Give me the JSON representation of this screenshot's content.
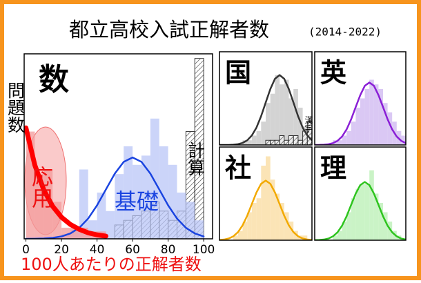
{
  "header": {
    "title": "都立高校入試正解者数",
    "subtitle": "(2014-2022)"
  },
  "chart_data": [
    {
      "type": "histogram",
      "title": "数",
      "y_label": "問題数",
      "x_label": "100人あたりの正解者数",
      "bins": [
        0,
        5,
        10,
        15,
        20,
        25,
        30,
        35,
        40,
        45,
        50,
        55,
        60,
        65,
        70,
        75,
        80,
        85,
        90,
        95,
        100
      ],
      "xlim": [
        -1,
        105
      ],
      "ylim": [
        0,
        20
      ],
      "xticks": [
        0,
        20,
        40,
        60,
        80,
        100
      ],
      "series": [
        {
          "name": "計算",
          "color": "#333333",
          "hatch": true,
          "values": [
            0,
            0,
            0,
            0,
            0,
            0,
            0,
            0,
            0,
            0,
            1.5,
            2,
            2.5,
            3,
            4,
            3,
            2,
            3,
            11.6,
            19.5
          ]
        },
        {
          "name": "基礎",
          "color": "#b9c6f7",
          "values": [
            0,
            0,
            0,
            0,
            0.5,
            1,
            7.5,
            2,
            5,
            3,
            7,
            10,
            8,
            9,
            13,
            10,
            8,
            5,
            4,
            2
          ]
        },
        {
          "name": "応用",
          "color": "#f39a9a",
          "values": [
            11.6,
            7,
            7.5,
            4,
            1.2,
            1.2,
            1.2,
            0.8,
            0.8,
            0,
            0,
            0,
            0,
            0,
            0,
            0,
            0,
            0,
            0,
            0
          ]
        }
      ],
      "curves": [
        {
          "color": "#1a44e0",
          "x": [
            0,
            5,
            10,
            15,
            20,
            25,
            30,
            35,
            40,
            45,
            50,
            55,
            60,
            65,
            70,
            75,
            80,
            85,
            90,
            95,
            100
          ],
          "values": [
            0,
            0.01,
            0.04,
            0.1,
            0.26,
            0.58,
            1.19,
            2.19,
            3.62,
            5.34,
            7.05,
            8.32,
            8.8,
            8.32,
            7.05,
            5.34,
            3.62,
            2.19,
            1.19,
            0.58,
            0.26
          ]
        },
        {
          "color": "#ff0000",
          "x": [
            0,
            5,
            10,
            15,
            20,
            25,
            30,
            35,
            40,
            45
          ],
          "values": [
            12,
            7.97,
            5.3,
            3.52,
            2.34,
            1.55,
            1.03,
            0.65,
            0.43,
            0.29
          ]
        }
      ]
    },
    {
      "type": "histogram",
      "title": "国",
      "bins": [
        0,
        5,
        10,
        15,
        20,
        25,
        30,
        35,
        40,
        45,
        50,
        55,
        60,
        65,
        70,
        75,
        80,
        85,
        90,
        95,
        100
      ],
      "xlim": [
        0,
        100
      ],
      "ylim": [
        0,
        20
      ],
      "series": [
        {
          "name": null,
          "color": "#c4c4c4",
          "values": [
            0,
            0,
            0,
            0,
            0,
            1,
            1,
            2,
            3,
            5,
            9,
            11,
            15,
            13,
            14,
            10,
            12,
            8,
            4,
            3
          ]
        },
        {
          "name": "漢字",
          "color": "#333333",
          "hatch": true,
          "values": [
            0,
            0,
            0,
            0,
            0,
            0,
            0,
            0,
            0,
            0,
            1,
            1,
            1,
            2,
            1,
            2,
            2,
            1,
            3,
            5
          ]
        }
      ],
      "curves": [
        {
          "color": "#333333",
          "x": [
            0,
            5,
            10,
            15,
            20,
            25,
            30,
            35,
            40,
            45,
            50,
            55,
            60,
            65,
            70,
            75,
            80,
            85,
            90,
            95,
            100
          ],
          "values": [
            0,
            0,
            0,
            0.06,
            0.17,
            0.44,
            0.99,
            2.03,
            3.73,
            6.17,
            9.11,
            12.0,
            14.2,
            15,
            14.2,
            12.0,
            9.11,
            6.17,
            3.73,
            2.03,
            0.99
          ]
        }
      ]
    },
    {
      "type": "histogram",
      "title": "英",
      "bins": [
        0,
        5,
        10,
        15,
        20,
        25,
        30,
        35,
        40,
        45,
        50,
        55,
        60,
        65,
        70,
        75,
        80,
        85,
        90,
        95,
        100
      ],
      "xlim": [
        0,
        100
      ],
      "ylim": [
        0,
        20
      ],
      "series": [
        {
          "name": null,
          "color": "#cdb6f0",
          "values": [
            0,
            0,
            0,
            0,
            1,
            1,
            2,
            3,
            5,
            8,
            10,
            12,
            14,
            13,
            12,
            9,
            7,
            5,
            3,
            2
          ]
        }
      ],
      "curves": [
        {
          "color": "#8a1fd6",
          "x": [
            0,
            5,
            10,
            15,
            20,
            25,
            30,
            35,
            40,
            45,
            50,
            55,
            60,
            65,
            70,
            75,
            80,
            85,
            90,
            95,
            100
          ],
          "values": [
            0,
            0.01,
            0.05,
            0.15,
            0.39,
            0.88,
            1.81,
            3.34,
            5.51,
            8.13,
            10.7,
            12.7,
            13.4,
            12.7,
            10.7,
            8.13,
            5.51,
            3.34,
            1.81,
            0.88,
            0.39
          ]
        }
      ]
    },
    {
      "type": "histogram",
      "title": "社",
      "bins": [
        0,
        5,
        10,
        15,
        20,
        25,
        30,
        35,
        40,
        45,
        50,
        55,
        60,
        65,
        70,
        75,
        80,
        85,
        90,
        95,
        100
      ],
      "xlim": [
        0,
        100
      ],
      "ylim": [
        0,
        20
      ],
      "series": [
        {
          "name": null,
          "color": "#fadb9e",
          "values": [
            0,
            0,
            0,
            1,
            2,
            4,
            6,
            8,
            9,
            16,
            18,
            13,
            10,
            8,
            6,
            4,
            2,
            1,
            1,
            0
          ]
        }
      ],
      "curves": [
        {
          "color": "#f2a900",
          "x": [
            0,
            5,
            10,
            15,
            20,
            25,
            30,
            35,
            40,
            45,
            50,
            55,
            60,
            65,
            70,
            75,
            80,
            85,
            90,
            95,
            100
          ],
          "values": [
            0.05,
            0.14,
            0.37,
            0.84,
            1.73,
            3.19,
            5.26,
            7.77,
            10.25,
            12.11,
            12.8,
            12.11,
            10.25,
            7.77,
            5.26,
            3.19,
            1.73,
            0.84,
            0.37,
            0.14,
            0.05
          ]
        }
      ]
    },
    {
      "type": "histogram",
      "title": "理",
      "bins": [
        0,
        5,
        10,
        15,
        20,
        25,
        30,
        35,
        40,
        45,
        50,
        55,
        60,
        65,
        70,
        75,
        80,
        85,
        90,
        95,
        100
      ],
      "xlim": [
        0,
        100
      ],
      "ylim": [
        0,
        20
      ],
      "series": [
        {
          "name": null,
          "color": "#b8efb3",
          "values": [
            0,
            0,
            0,
            0,
            1,
            2,
            4,
            6,
            9,
            11,
            12,
            12,
            15,
            10,
            8,
            6,
            4,
            2,
            1,
            0
          ]
        }
      ],
      "curves": [
        {
          "color": "#2ec41e",
          "x": [
            0,
            5,
            10,
            15,
            20,
            25,
            30,
            35,
            40,
            45,
            50,
            55,
            60,
            65,
            70,
            75,
            80,
            85,
            90,
            95,
            100
          ],
          "values": [
            0.01,
            0.05,
            0.14,
            0.36,
            0.83,
            1.69,
            3.11,
            5.14,
            7.59,
            10.01,
            11.83,
            12.5,
            11.83,
            10.01,
            7.59,
            5.14,
            3.11,
            1.69,
            0.83,
            0.36,
            0.14
          ]
        }
      ]
    }
  ]
}
